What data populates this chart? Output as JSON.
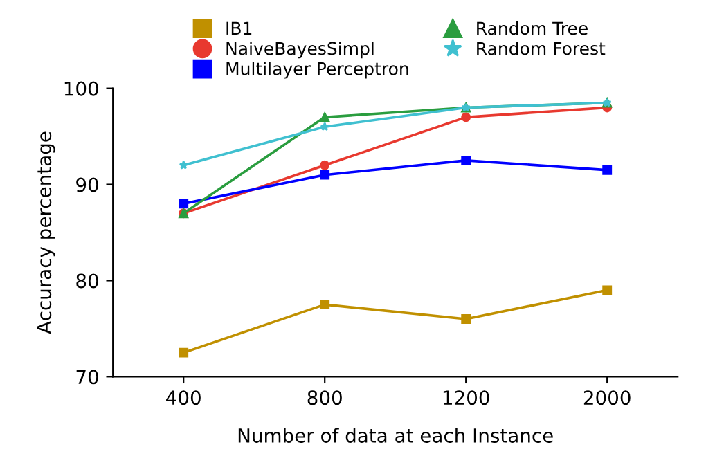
{
  "chart_data": {
    "type": "line",
    "xlabel": "Number of data at each Instance",
    "ylabel": "Accuracy percentage",
    "categories": [
      "400",
      "800",
      "1200",
      "2000"
    ],
    "series": [
      {
        "name": "IB1",
        "color": "#c09000",
        "marker": "square",
        "values": [
          72.5,
          77.5,
          76,
          79
        ]
      },
      {
        "name": "NaiveBayesSimpl",
        "color": "#e8392f",
        "marker": "circle",
        "values": [
          87,
          92,
          97,
          98
        ]
      },
      {
        "name": "Multilayer Perceptron",
        "color": "#0000ff",
        "marker": "square",
        "values": [
          88,
          91,
          92.5,
          91.5
        ]
      },
      {
        "name": "Random Tree",
        "color": "#2a9d3f",
        "marker": "triangle",
        "values": [
          87,
          97,
          98,
          98.5
        ]
      },
      {
        "name": "Random Forest",
        "color": "#40c0d0",
        "marker": "star",
        "values": [
          92,
          96,
          98,
          98.5
        ]
      }
    ],
    "ylim": [
      70,
      100
    ],
    "yticks": [
      70,
      80,
      90,
      100
    ],
    "grid": false,
    "legend": "top",
    "line_style": "solid"
  }
}
